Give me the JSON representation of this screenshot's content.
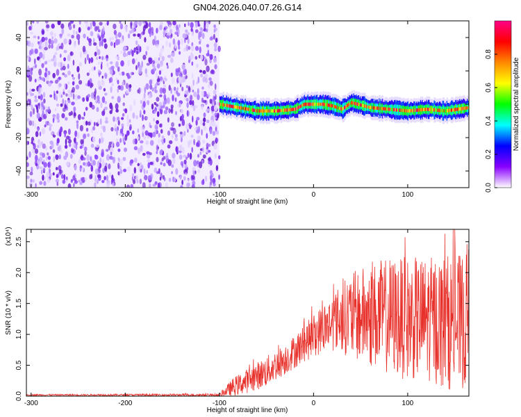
{
  "title": "GN04.2026.040.07.26.G14",
  "chart_data": [
    {
      "type": "heatmap",
      "name": "spectrogram",
      "xlabel": "Height of straight line (km)",
      "ylabel": "Frequency (Hz)",
      "xlim": [
        -305,
        165
      ],
      "ylim": [
        -50,
        50
      ],
      "xticks": [
        -300,
        -200,
        -100,
        0,
        100
      ],
      "yticks": [
        -40,
        -20,
        0,
        20,
        40
      ],
      "noise_region": {
        "x_from": -305,
        "x_to": -100,
        "y_from": -50,
        "y_to": 50
      },
      "signal_band": {
        "x_from": -100,
        "x_to": 165,
        "center_line_x": [
          -100,
          -80,
          -60,
          -40,
          -20,
          -10,
          0,
          10,
          20,
          30,
          40,
          60,
          80,
          100,
          120,
          140,
          165
        ],
        "center_line_y": [
          0,
          -2,
          -4,
          -4,
          -3,
          0,
          0,
          0,
          -1,
          -3,
          1,
          -2,
          -3,
          -4,
          -3,
          -4,
          -2
        ],
        "half_width_hz": 4
      },
      "colorbar": {
        "label": "Normalized spectral amplitude",
        "range": [
          0,
          1
        ],
        "ticks": [
          "0.0",
          "0.2",
          "0.4",
          "0.6",
          "0.8"
        ],
        "tick_values": [
          0.0,
          0.2,
          0.4,
          0.6,
          0.8
        ],
        "colors": [
          "#ffffff",
          "#8800ff",
          "#0000ff",
          "#00ffff",
          "#00ff00",
          "#ffff00",
          "#ff8800",
          "#ff0000",
          "#ff0088"
        ]
      }
    },
    {
      "type": "line",
      "name": "snr",
      "xlabel": "Height of straight line (km)",
      "ylabel": "SNR (10 * v/v)",
      "y_multiplier": "(x10⁴)",
      "xlim": [
        -305,
        165
      ],
      "ylim": [
        0,
        2.7
      ],
      "xticks": [
        -300,
        -200,
        -100,
        0,
        100
      ],
      "yticks": [
        0.0,
        0.5,
        1.0,
        1.5,
        2.0,
        2.5
      ],
      "ytick_labels": [
        "0.0",
        "0.5",
        "1.0",
        "1.5",
        "2.0",
        "2.5"
      ],
      "color": "#e8302a",
      "envelope_x": [
        -305,
        -100,
        -85,
        -70,
        -50,
        -30,
        -10,
        10,
        25,
        40,
        60,
        80,
        100,
        120,
        140,
        165
      ],
      "envelope_mean": [
        0.02,
        0.02,
        0.15,
        0.25,
        0.4,
        0.6,
        0.85,
        1.1,
        1.25,
        1.3,
        1.3,
        1.3,
        1.25,
        1.25,
        1.2,
        1.2
      ],
      "envelope_amp": [
        0.01,
        0.02,
        0.15,
        0.2,
        0.25,
        0.25,
        0.3,
        0.4,
        0.5,
        0.7,
        0.85,
        0.95,
        1.0,
        1.0,
        1.1,
        1.1
      ],
      "peak_y": 2.7
    }
  ]
}
